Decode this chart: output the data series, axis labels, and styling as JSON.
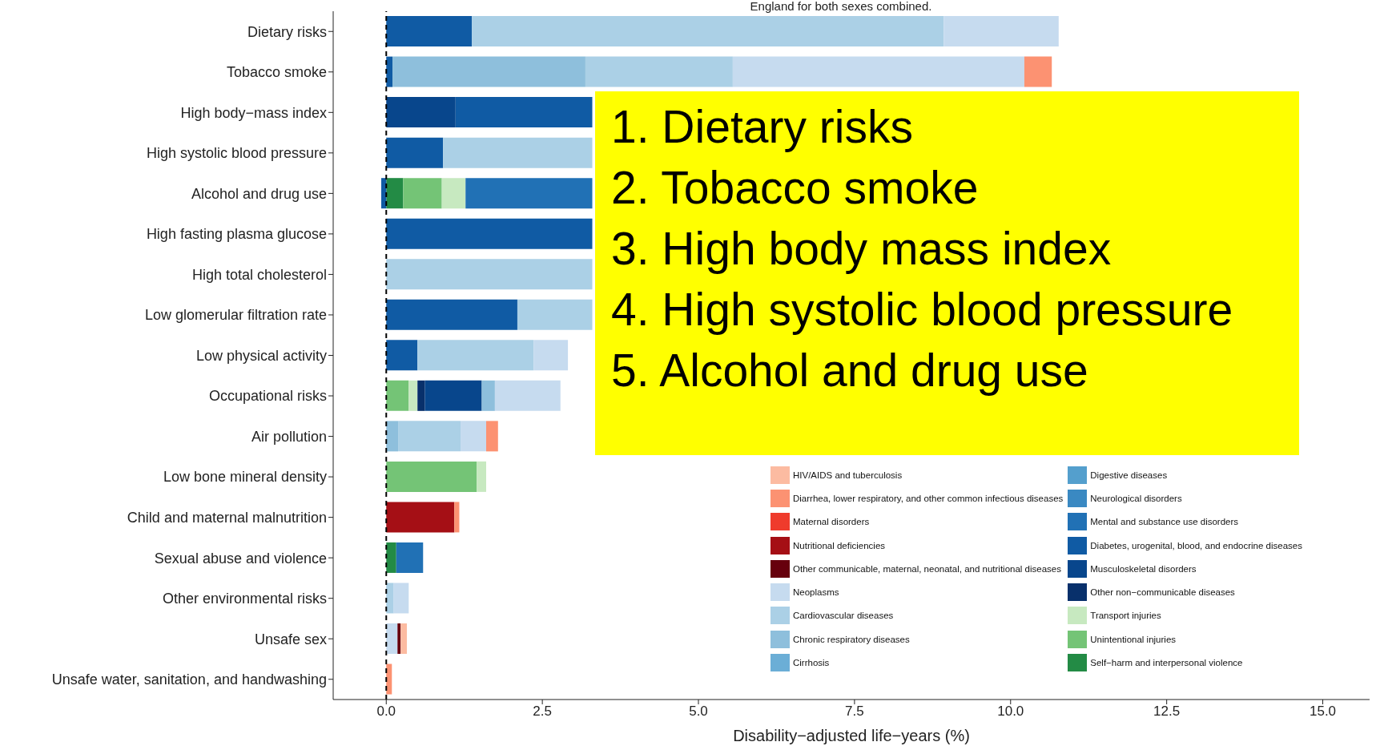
{
  "chart_data": {
    "type": "bar",
    "orientation": "horizontal",
    "stacked": true,
    "title": "England for both sexes combined.",
    "xlabel": "Disability−adjusted life−years (%)",
    "categories": [
      "Dietary risks",
      "Tobacco smoke",
      "High body−mass index",
      "High systolic blood pressure",
      "Alcohol and drug use",
      "High fasting plasma glucose",
      "High total cholesterol",
      "Low glomerular filtration rate",
      "Low physical activity",
      "Occupational risks",
      "Air pollution",
      "Low bone mineral density",
      "Child and maternal malnutrition",
      "Sexual abuse and violence",
      "Other environmental risks",
      "Unsafe sex",
      "Unsafe water, sanitation, and handwashing"
    ],
    "series": [
      {
        "name": "Self−harm and interpersonal violence",
        "color": "#238b45",
        "values": [
          null,
          null,
          null,
          null,
          0.27,
          null,
          null,
          null,
          null,
          null,
          null,
          null,
          null,
          0.16,
          null,
          null,
          null
        ]
      },
      {
        "name": "Unintentional injuries",
        "color": "#74c476",
        "values": [
          null,
          null,
          null,
          null,
          0.62,
          null,
          null,
          null,
          null,
          0.36,
          null,
          1.45,
          null,
          null,
          null,
          null,
          null
        ]
      },
      {
        "name": "Transport injuries",
        "color": "#c7e9c0",
        "values": [
          null,
          null,
          null,
          null,
          0.38,
          null,
          null,
          null,
          null,
          0.14,
          null,
          0.15,
          null,
          null,
          null,
          null,
          null
        ]
      },
      {
        "name": "Other non−communicable diseases",
        "color": "#08306b",
        "values": [
          null,
          null,
          null,
          null,
          null,
          null,
          null,
          null,
          null,
          0.12,
          null,
          null,
          null,
          null,
          null,
          null,
          null
        ]
      },
      {
        "name": "Musculoskeletal disorders",
        "color": "#08468c",
        "values": [
          null,
          null,
          1.11,
          null,
          null,
          null,
          null,
          null,
          null,
          0.91,
          null,
          null,
          null,
          null,
          null,
          null,
          null
        ]
      },
      {
        "name": "Diabetes, urogenital, blood, and endocrine diseases",
        "color": "#105ba4",
        "values": [
          1.37,
          0.1,
          2.19,
          0.91,
          -0.08,
          3.3,
          null,
          2.1,
          0.5,
          null,
          null,
          null,
          null,
          null,
          null,
          null,
          null
        ]
      },
      {
        "name": "Mental and substance use disorders",
        "color": "#2171b5",
        "values": [
          null,
          null,
          null,
          null,
          2.03,
          null,
          null,
          null,
          null,
          null,
          null,
          null,
          null,
          0.43,
          null,
          null,
          null
        ]
      },
      {
        "name": "Neurological disorders",
        "color": "#3a89c2",
        "values": [
          null,
          null,
          null,
          null,
          null,
          null,
          null,
          null,
          null,
          null,
          null,
          null,
          null,
          null,
          null,
          null,
          null
        ]
      },
      {
        "name": "Digestive diseases",
        "color": "#549fcd",
        "values": [
          null,
          null,
          null,
          null,
          null,
          null,
          null,
          null,
          null,
          null,
          null,
          null,
          null,
          null,
          null,
          null,
          null
        ]
      },
      {
        "name": "Cirrhosis",
        "color": "#6baed6",
        "values": [
          null,
          null,
          null,
          null,
          null,
          null,
          null,
          null,
          null,
          null,
          null,
          null,
          null,
          null,
          null,
          null,
          null
        ]
      },
      {
        "name": "Chronic respiratory diseases",
        "color": "#8ebfdc",
        "values": [
          null,
          3.09,
          null,
          null,
          null,
          null,
          null,
          null,
          null,
          0.21,
          0.19,
          null,
          null,
          null,
          null,
          null,
          null
        ]
      },
      {
        "name": "Cardiovascular diseases",
        "color": "#abd0e6",
        "values": [
          7.56,
          2.36,
          null,
          2.39,
          null,
          null,
          3.3,
          1.2,
          1.86,
          null,
          1.0,
          null,
          null,
          null,
          0.12,
          null,
          null
        ]
      },
      {
        "name": "Neoplasms",
        "color": "#c6dbef",
        "values": [
          1.84,
          4.67,
          null,
          null,
          null,
          null,
          null,
          null,
          0.55,
          1.05,
          0.41,
          null,
          null,
          null,
          0.24,
          0.18,
          null
        ]
      },
      {
        "name": "Other communicable, maternal, neonatal, and nutritional diseases",
        "color": "#67000d",
        "values": [
          null,
          null,
          null,
          null,
          null,
          null,
          null,
          null,
          null,
          null,
          null,
          null,
          null,
          null,
          null,
          0.05,
          null
        ]
      },
      {
        "name": "Nutritional deficiencies",
        "color": "#a50f15",
        "values": [
          null,
          null,
          null,
          null,
          null,
          null,
          null,
          null,
          null,
          null,
          null,
          null,
          1.09,
          null,
          null,
          null,
          null
        ]
      },
      {
        "name": "Maternal disorders",
        "color": "#ef3b2c",
        "values": [
          null,
          null,
          null,
          null,
          null,
          null,
          null,
          null,
          null,
          null,
          null,
          null,
          null,
          null,
          null,
          null,
          null
        ]
      },
      {
        "name": "Diarrhea, lower respiratory, and other common infectious diseases",
        "color": "#fc9272",
        "values": [
          null,
          0.44,
          null,
          null,
          null,
          null,
          null,
          null,
          null,
          null,
          0.19,
          null,
          0.08,
          null,
          null,
          null,
          0.09
        ]
      },
      {
        "name": "HIV/AIDS and tuberculosis",
        "color": "#fcbba1",
        "values": [
          null,
          null,
          null,
          null,
          null,
          null,
          null,
          null,
          null,
          null,
          null,
          null,
          null,
          null,
          null,
          0.1,
          null
        ]
      }
    ],
    "xlim": [
      -0.85,
      15.75
    ],
    "xticks": [
      {
        "value": 0,
        "label": "0.0"
      },
      {
        "value": 2.5,
        "label": "2.5"
      },
      {
        "value": 5,
        "label": "5.0"
      },
      {
        "value": 7.5,
        "label": "7.5"
      },
      {
        "value": 10,
        "label": "10.0"
      },
      {
        "value": 12.5,
        "label": "12.5"
      },
      {
        "value": 15,
        "label": "15.0"
      }
    ],
    "ref_lines": [
      {
        "axis": "x",
        "value": 0,
        "line_style": "dashed",
        "color": "#000000"
      }
    ],
    "legend": "bottom right",
    "annotations": [
      "1. Dietary risks",
      "2. Tobacco smoke",
      "3. High body mass index",
      "4. High systolic blood pressure",
      "5. Alcohol and drug use"
    ]
  }
}
